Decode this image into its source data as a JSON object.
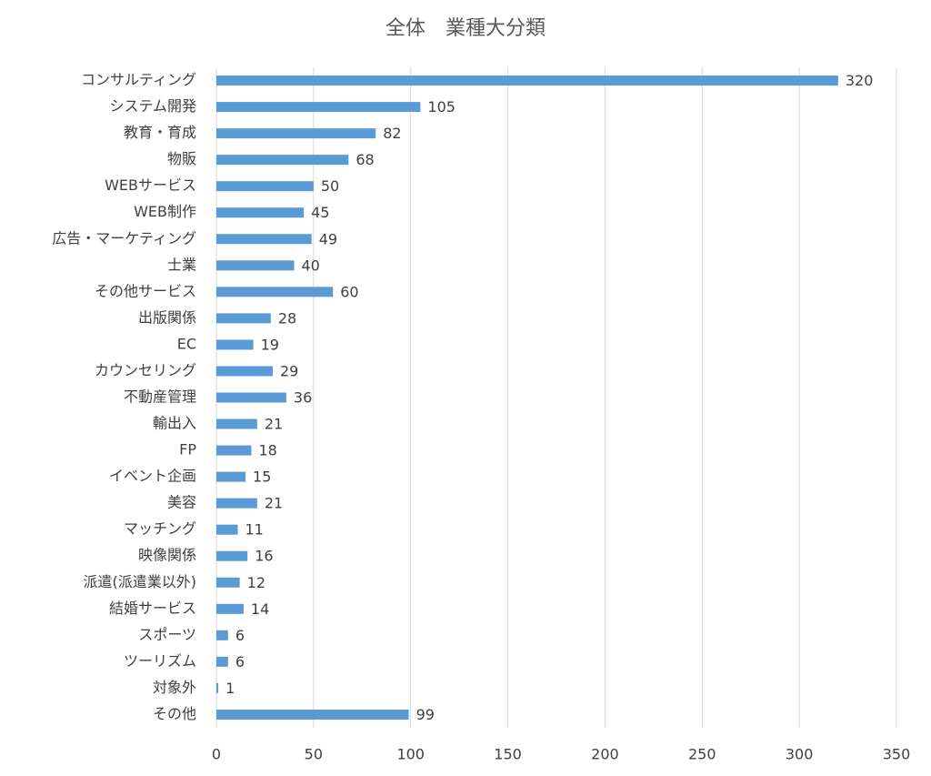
{
  "chart_data": {
    "type": "bar",
    "orientation": "horizontal",
    "title": "全体　業種大分類",
    "categories": [
      "コンサルティング",
      "システム開発",
      "教育・育成",
      "物販",
      "WEBサービス",
      "WEB制作",
      "広告・マーケティング",
      "士業",
      "その他サービス",
      "出版関係",
      "EC",
      "カウンセリング",
      "不動産管理",
      "輸出入",
      "FP",
      "イベント企画",
      "美容",
      "マッチング",
      "映像関係",
      "派遣(派遣業以外)",
      "結婚サービス",
      "スポーツ",
      "ツーリズム",
      "対象外",
      "その他"
    ],
    "values": [
      320,
      105,
      82,
      68,
      50,
      45,
      49,
      40,
      60,
      28,
      19,
      29,
      36,
      21,
      18,
      15,
      21,
      11,
      16,
      12,
      14,
      6,
      6,
      1,
      99
    ],
    "color": "#5b9bd5",
    "xlim": [
      0,
      350
    ],
    "xticks": [
      0,
      50,
      100,
      150,
      200,
      250,
      300,
      350
    ],
    "grid": true
  }
}
